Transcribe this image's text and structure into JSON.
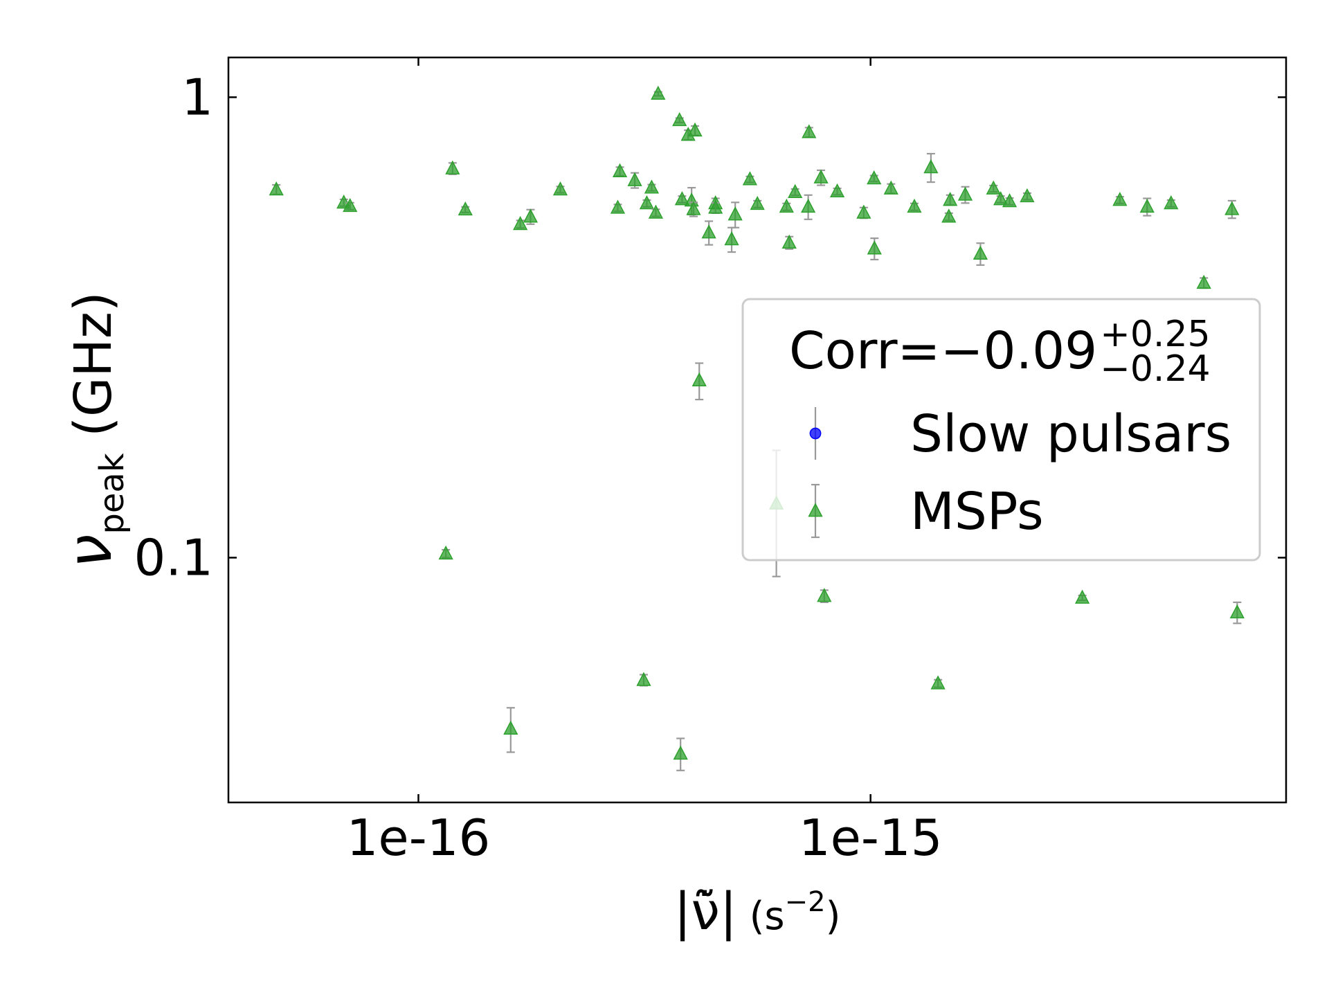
{
  "chart_data": {
    "type": "scatter",
    "x_label": {
      "main": "|ν̃̇|",
      "unit": " (s",
      "exponent": "−2",
      "close": ")"
    },
    "y_label": {
      "symbol": "ν",
      "subscript": "peak",
      "unit": " (GHz)"
    },
    "xscale": "log",
    "yscale": "log",
    "xlim": [
      3.8e-17,
      8.3e-15
    ],
    "ylim": [
      0.0294,
      1.22
    ],
    "xticks": [
      {
        "value": 1e-16,
        "label": "1e-16"
      },
      {
        "value": 1e-15,
        "label": "1e-15"
      }
    ],
    "yticks": [
      1,
      0.1
    ],
    "legend_position": "center right",
    "legend_title": {
      "text": "Corr=−0.09",
      "upper": "+0.25",
      "lower": "−0.24"
    },
    "series": [
      {
        "name": "Slow pulsars",
        "color": "#0000ff",
        "marker": "circle",
        "x": [],
        "values": [],
        "errors": []
      },
      {
        "name": "MSPs",
        "color": "#2ca02c",
        "marker": "triangle",
        "x": [
          4.85e-17,
          6.84e-17,
          7.06e-17,
          1.15e-16,
          1.19e-16,
          1.27e-16,
          1.6e-16,
          1.68e-16,
          1.77e-16,
          2.06e-16,
          2.76e-16,
          2.79e-16,
          3.01e-16,
          3.15e-16,
          3.2e-16,
          3.28e-16,
          3.35e-16,
          3.39e-16,
          3.78e-16,
          3.8e-16,
          3.83e-16,
          3.95e-16,
          4.02e-16,
          4.06e-16,
          4.09e-16,
          4.18e-16,
          4.39e-16,
          4.54e-16,
          4.54e-16,
          4.93e-16,
          5.02e-16,
          5.41e-16,
          5.62e-16,
          6.19e-16,
          6.52e-16,
          6.61e-16,
          6.81e-16,
          7.28e-16,
          7.31e-16,
          7.77e-16,
          7.9e-16,
          8.44e-16,
          9.66e-16,
          1.018e-15,
          1.02e-15,
          1.11e-15,
          1.25e-15,
          1.36e-15,
          1.41e-15,
          1.49e-15,
          1.5e-15,
          1.62e-15,
          1.75e-15,
          1.87e-15,
          1.94e-15,
          2.03e-15,
          2.22e-15,
          2.94e-15,
          3.56e-15,
          4.09e-15,
          4.62e-15,
          5.46e-15,
          6.3e-15,
          6.47e-15
        ],
        "values": [
          0.63,
          0.59,
          0.58,
          0.102,
          0.7,
          0.57,
          0.0425,
          0.53,
          0.55,
          0.63,
          0.575,
          0.69,
          0.66,
          0.0542,
          0.588,
          0.636,
          0.561,
          1.017,
          0.891,
          0.0375,
          0.6,
          0.828,
          0.596,
          0.571,
          0.846,
          0.2425,
          0.508,
          0.588,
          0.575,
          0.491,
          0.556,
          0.663,
          0.586,
          0.131,
          0.578,
          0.483,
          0.622,
          0.578,
          0.839,
          0.669,
          0.0825,
          0.624,
          0.561,
          0.666,
          0.469,
          0.633,
          0.578,
          0.704,
          0.0533,
          0.55,
          0.598,
          0.614,
          0.457,
          0.633,
          0.6,
          0.594,
          0.609,
          0.0818,
          0.598,
          0.578,
          0.588,
          0.395,
          0.571,
          0.076
        ],
        "errors": [
          0.015,
          0.01,
          0.01,
          0.002,
          0.02,
          0.008,
          0.0047,
          0.01,
          0.02,
          0.01,
          0.01,
          0.015,
          0.025,
          0.0015,
          0.01,
          0.01,
          0.01,
          0.01,
          0.01,
          0.003,
          0.01,
          0.02,
          0.04,
          0.02,
          0.02,
          0.022,
          0.03,
          0.015,
          0.015,
          0.03,
          0.035,
          0.01,
          0.01,
          0.04,
          0.01,
          0.015,
          0.01,
          0.035,
          0.02,
          0.025,
          0.0025,
          0.01,
          0.015,
          0.01,
          0.025,
          0.015,
          0.01,
          0.05,
          0.001,
          0.01,
          0.015,
          0.025,
          0.025,
          0.01,
          0.01,
          0.01,
          0.01,
          0.001,
          0.01,
          0.025,
          0.01,
          0.01,
          0.025,
          0.004
        ]
      }
    ]
  }
}
